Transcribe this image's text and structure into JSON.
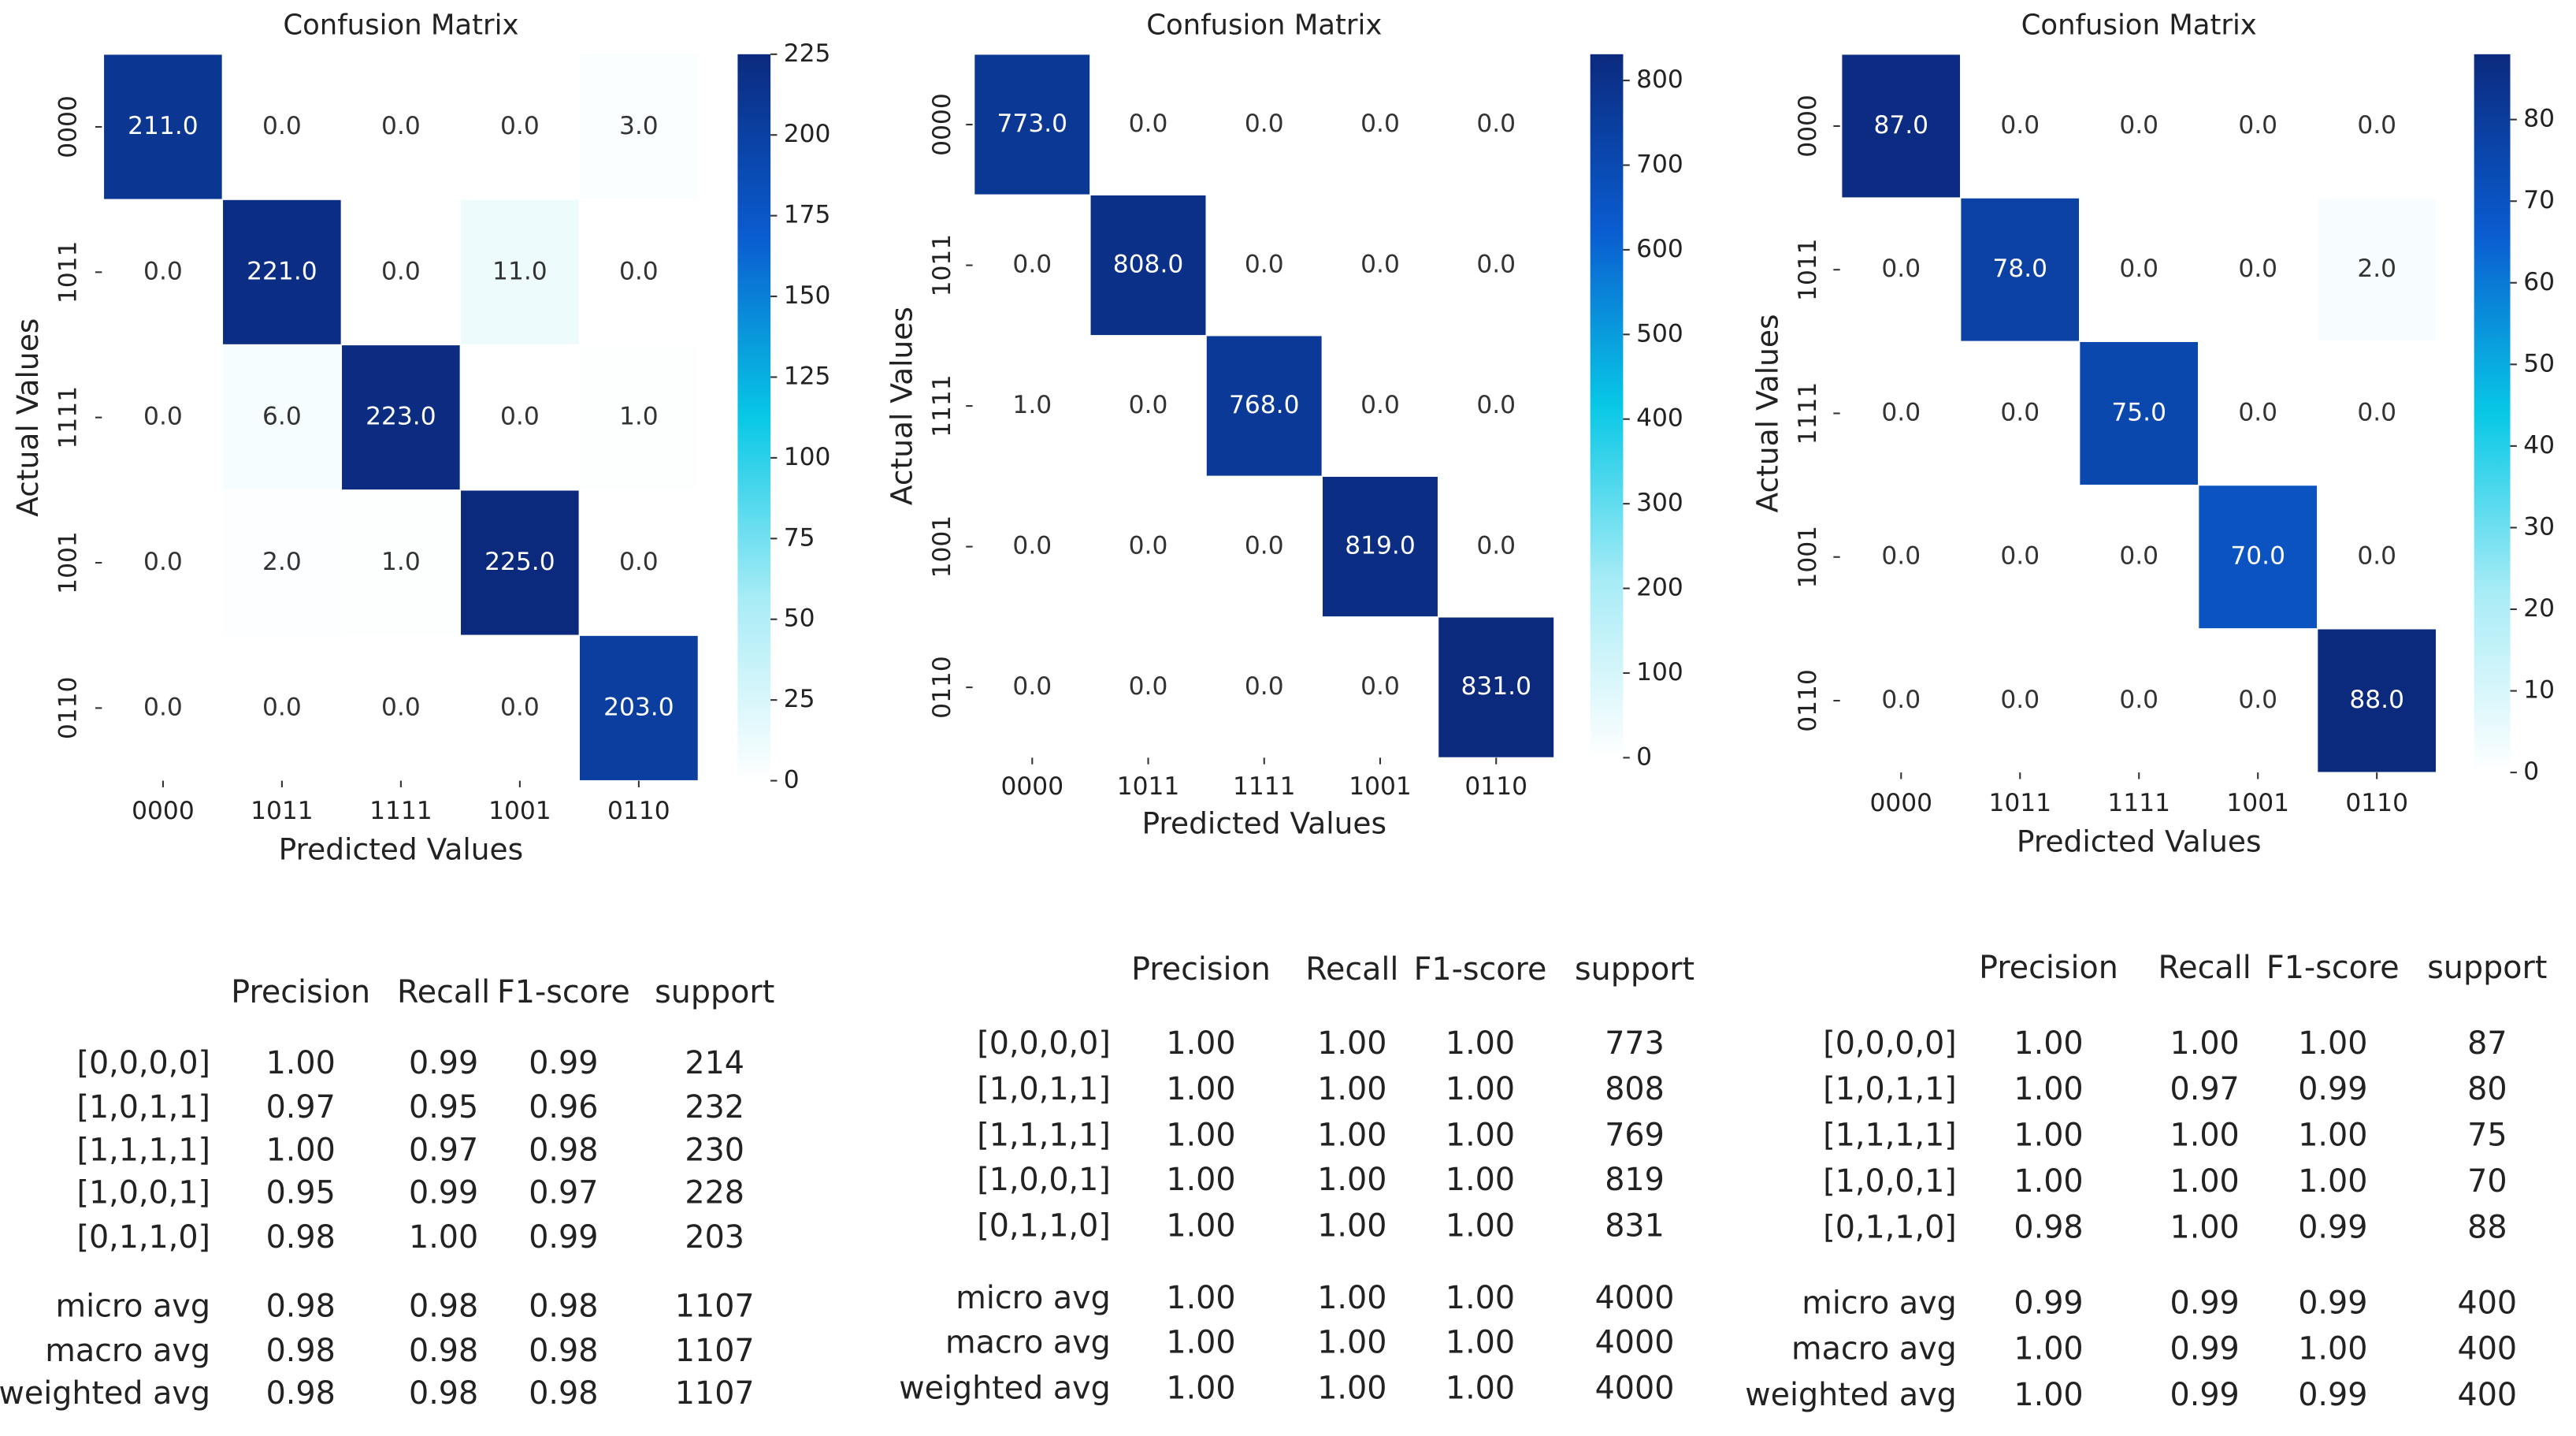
{
  "chart_data": [
    {
      "type": "heatmap",
      "title": "Confusion Matrix",
      "x_label": "Predicted Values",
      "y_label": "Actual Values",
      "x_categories": [
        "0000",
        "1011",
        "1111",
        "1001",
        "0110"
      ],
      "y_categories": [
        "0000",
        "1011",
        "1111",
        "1001",
        "0110"
      ],
      "values": [
        [
          211,
          0,
          0,
          0,
          3
        ],
        [
          0,
          221,
          0,
          11,
          0
        ],
        [
          0,
          6,
          223,
          0,
          1
        ],
        [
          0,
          2,
          1,
          225,
          0
        ],
        [
          0,
          0,
          0,
          0,
          203
        ]
      ],
      "value_labels": [
        [
          "211.0",
          "0.0",
          "0.0",
          "0.0",
          "3.0"
        ],
        [
          "0.0",
          "221.0",
          "0.0",
          "11.0",
          "0.0"
        ],
        [
          "0.0",
          "6.0",
          "223.0",
          "0.0",
          "1.0"
        ],
        [
          "0.0",
          "2.0",
          "1.0",
          "225.0",
          "0.0"
        ],
        [
          "0.0",
          "0.0",
          "0.0",
          "0.0",
          "203.0"
        ]
      ],
      "clim": [
        0,
        225
      ],
      "cticks": [
        0,
        25,
        50,
        75,
        100,
        125,
        150,
        175,
        200,
        225
      ],
      "colorscale": [
        "#ffffff",
        "#a8ecf6",
        "#08c8e6",
        "#0a5cd0",
        "#0b2a7e"
      ]
    },
    {
      "type": "heatmap",
      "title": "Confusion Matrix",
      "x_label": "Predicted Values",
      "y_label": "Actual Values",
      "x_categories": [
        "0000",
        "1011",
        "1111",
        "1001",
        "0110"
      ],
      "y_categories": [
        "0000",
        "1011",
        "1111",
        "1001",
        "0110"
      ],
      "values": [
        [
          773,
          0,
          0,
          0,
          0
        ],
        [
          0,
          808,
          0,
          0,
          0
        ],
        [
          1,
          0,
          768,
          0,
          0
        ],
        [
          0,
          0,
          0,
          819,
          0
        ],
        [
          0,
          0,
          0,
          0,
          831
        ]
      ],
      "value_labels": [
        [
          "773.0",
          "0.0",
          "0.0",
          "0.0",
          "0.0"
        ],
        [
          "0.0",
          "808.0",
          "0.0",
          "0.0",
          "0.0"
        ],
        [
          "1.0",
          "0.0",
          "768.0",
          "0.0",
          "0.0"
        ],
        [
          "0.0",
          "0.0",
          "0.0",
          "819.0",
          "0.0"
        ],
        [
          "0.0",
          "0.0",
          "0.0",
          "0.0",
          "831.0"
        ]
      ],
      "clim": [
        0,
        831
      ],
      "cticks": [
        0,
        100,
        200,
        300,
        400,
        500,
        600,
        700,
        800
      ],
      "colorscale": [
        "#ffffff",
        "#a8ecf6",
        "#08c8e6",
        "#0a5cd0",
        "#0b2a7e"
      ]
    },
    {
      "type": "heatmap",
      "title": "Confusion Matrix",
      "x_label": "Predicted Values",
      "y_label": "Actual Values",
      "x_categories": [
        "0000",
        "1011",
        "1111",
        "1001",
        "0110"
      ],
      "y_categories": [
        "0000",
        "1011",
        "1111",
        "1001",
        "0110"
      ],
      "values": [
        [
          87,
          0,
          0,
          0,
          0
        ],
        [
          0,
          78,
          0,
          0,
          2
        ],
        [
          0,
          0,
          75,
          0,
          0
        ],
        [
          0,
          0,
          0,
          70,
          0
        ],
        [
          0,
          0,
          0,
          0,
          88
        ]
      ],
      "value_labels": [
        [
          "87.0",
          "0.0",
          "0.0",
          "0.0",
          "0.0"
        ],
        [
          "0.0",
          "78.0",
          "0.0",
          "0.0",
          "2.0"
        ],
        [
          "0.0",
          "0.0",
          "75.0",
          "0.0",
          "0.0"
        ],
        [
          "0.0",
          "0.0",
          "0.0",
          "70.0",
          "0.0"
        ],
        [
          "0.0",
          "0.0",
          "0.0",
          "0.0",
          "88.0"
        ]
      ],
      "clim": [
        0,
        88
      ],
      "cticks": [
        0,
        10,
        20,
        30,
        40,
        50,
        60,
        70,
        80
      ],
      "colorscale": [
        "#ffffff",
        "#a8ecf6",
        "#08c8e6",
        "#0a5cd0",
        "#0b2a7e"
      ]
    }
  ],
  "reports": [
    {
      "header": [
        "Precision",
        "Recall",
        "F1-score",
        "support"
      ],
      "rows": [
        {
          "label": "[0,0,0,0]",
          "values": [
            "1.00",
            "0.99",
            "0.99",
            "214"
          ]
        },
        {
          "label": "[1,0,1,1]",
          "values": [
            "0.97",
            "0.95",
            "0.96",
            "232"
          ]
        },
        {
          "label": "[1,1,1,1]",
          "values": [
            "1.00",
            "0.97",
            "0.98",
            "230"
          ]
        },
        {
          "label": "[1,0,0,1]",
          "values": [
            "0.95",
            "0.99",
            "0.97",
            "228"
          ]
        },
        {
          "label": "[0,1,1,0]",
          "values": [
            "0.98",
            "1.00",
            "0.99",
            "203"
          ]
        },
        {
          "label": "micro avg",
          "values": [
            "0.98",
            "0.98",
            "0.98",
            "1107"
          ]
        },
        {
          "label": "macro avg",
          "values": [
            "0.98",
            "0.98",
            "0.98",
            "1107"
          ]
        },
        {
          "label": "weighted avg",
          "values": [
            "0.98",
            "0.98",
            "0.98",
            "1107"
          ]
        }
      ]
    },
    {
      "header": [
        "Precision",
        "Recall",
        "F1-score",
        "support"
      ],
      "rows": [
        {
          "label": "[0,0,0,0]",
          "values": [
            "1.00",
            "1.00",
            "1.00",
            "773"
          ]
        },
        {
          "label": "[1,0,1,1]",
          "values": [
            "1.00",
            "1.00",
            "1.00",
            "808"
          ]
        },
        {
          "label": "[1,1,1,1]",
          "values": [
            "1.00",
            "1.00",
            "1.00",
            "769"
          ]
        },
        {
          "label": "[1,0,0,1]",
          "values": [
            "1.00",
            "1.00",
            "1.00",
            "819"
          ]
        },
        {
          "label": "[0,1,1,0]",
          "values": [
            "1.00",
            "1.00",
            "1.00",
            "831"
          ]
        },
        {
          "label": "micro avg",
          "values": [
            "1.00",
            "1.00",
            "1.00",
            "4000"
          ]
        },
        {
          "label": "macro avg",
          "values": [
            "1.00",
            "1.00",
            "1.00",
            "4000"
          ]
        },
        {
          "label": "weighted avg",
          "values": [
            "1.00",
            "1.00",
            "1.00",
            "4000"
          ]
        }
      ]
    },
    {
      "header": [
        "Precision",
        "Recall",
        "F1-score",
        "support"
      ],
      "rows": [
        {
          "label": "[0,0,0,0]",
          "values": [
            "1.00",
            "1.00",
            "1.00",
            "87"
          ]
        },
        {
          "label": "[1,0,1,1]",
          "values": [
            "1.00",
            "0.97",
            "0.99",
            "80"
          ]
        },
        {
          "label": "[1,1,1,1]",
          "values": [
            "1.00",
            "1.00",
            "1.00",
            "75"
          ]
        },
        {
          "label": "[1,0,0,1]",
          "values": [
            "1.00",
            "1.00",
            "1.00",
            "70"
          ]
        },
        {
          "label": "[0,1,1,0]",
          "values": [
            "0.98",
            "1.00",
            "0.99",
            "88"
          ]
        },
        {
          "label": "micro avg",
          "values": [
            "0.99",
            "0.99",
            "0.99",
            "400"
          ]
        },
        {
          "label": "macro avg",
          "values": [
            "1.00",
            "0.99",
            "1.00",
            "400"
          ]
        },
        {
          "label": "weighted avg",
          "values": [
            "1.00",
            "0.99",
            "0.99",
            "400"
          ]
        }
      ]
    }
  ]
}
